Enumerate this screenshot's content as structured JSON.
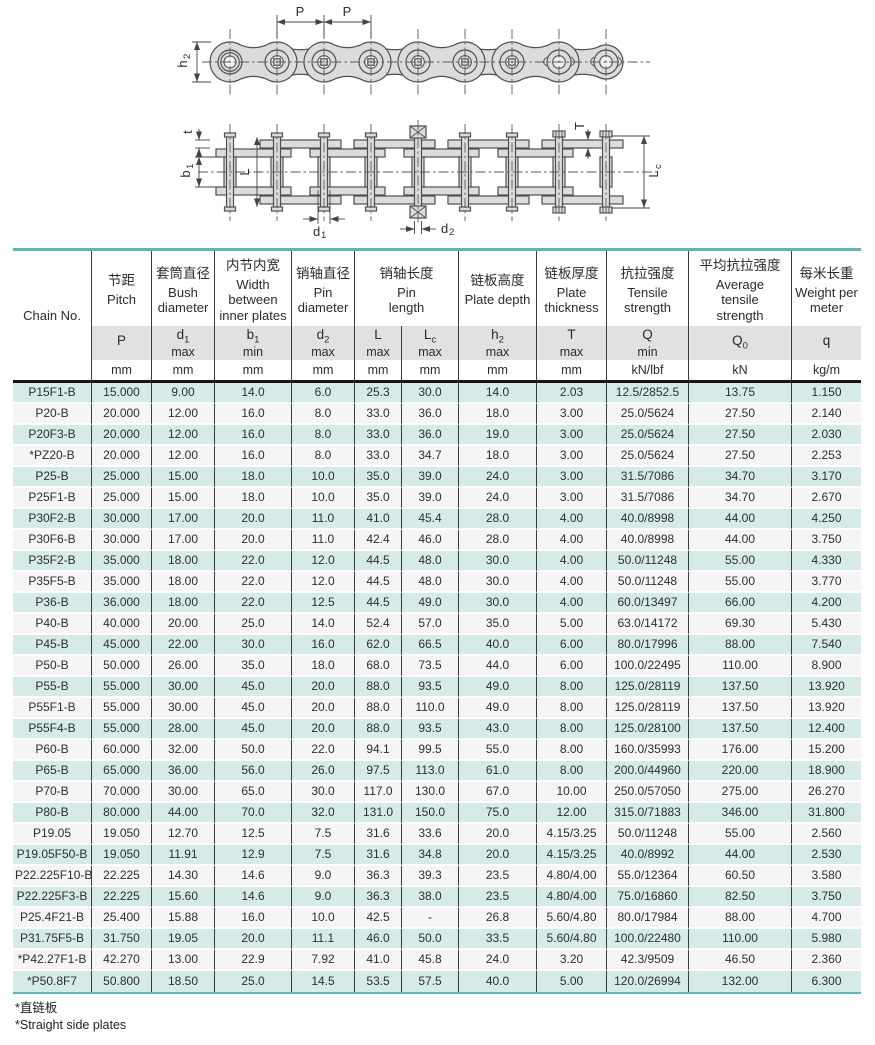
{
  "colors": {
    "accent": "#5fb7b1",
    "row_teal": "#d6ebe7",
    "row_light": "#f5f5f5",
    "band_gray": "#e1e1e1"
  },
  "diagram": {
    "pitch": "P",
    "h2": {
      "base": "h",
      "sub": "2"
    },
    "t": "t",
    "b1": {
      "base": "b",
      "sub": "1"
    },
    "L": "L",
    "d1": {
      "base": "d",
      "sub": "1"
    },
    "d2": {
      "base": "d",
      "sub": "2"
    },
    "T": "T",
    "Lc": {
      "base": "L",
      "sub": "c"
    }
  },
  "table": {
    "chain_no_header": "Chain No.",
    "groups": {
      "pin_length": {
        "cn": "销轴长度",
        "en": "Pin length"
      }
    },
    "columns": [
      {
        "cn": "节距",
        "en": "Pitch",
        "sym": {
          "base": "P",
          "sub": "",
          "qual": ""
        },
        "unit": "mm"
      },
      {
        "cn": "套筒直径",
        "en": "Bush diameter",
        "sym": {
          "base": "d",
          "sub": "1",
          "qual": "max"
        },
        "unit": "mm"
      },
      {
        "cn": "内节内宽",
        "en": "Width between inner plates",
        "sym": {
          "base": "b",
          "sub": "1",
          "qual": "min"
        },
        "unit": "mm"
      },
      {
        "cn": "销轴直径",
        "en": "Pin diameter",
        "sym": {
          "base": "d",
          "sub": "2",
          "qual": "max"
        },
        "unit": "mm"
      },
      {
        "cn": "",
        "en": "",
        "sym": {
          "base": "L",
          "sub": "",
          "qual": "max"
        },
        "unit": "mm"
      },
      {
        "cn": "",
        "en": "",
        "sym": {
          "base": "L",
          "sub": "c",
          "qual": "max"
        },
        "unit": "mm"
      },
      {
        "cn": "链板高度",
        "en": "Plate depth",
        "sym": {
          "base": "h",
          "sub": "2",
          "qual": "max"
        },
        "unit": "mm"
      },
      {
        "cn": "链板厚度",
        "en": "Plate thickness",
        "sym": {
          "base": "T",
          "sub": "",
          "qual": "max"
        },
        "unit": "mm"
      },
      {
        "cn": "抗拉强度",
        "en": "Tensile strength",
        "sym": {
          "base": "Q",
          "sub": "",
          "qual": "min"
        },
        "unit": "kN/lbf"
      },
      {
        "cn": "平均抗拉强度",
        "en": "Average tensile strength",
        "sym": {
          "base": "Q",
          "sub": "0",
          "qual": ""
        },
        "unit": "kN"
      },
      {
        "cn": "每米长重",
        "en": "Weight per meter",
        "sym": {
          "base": "q",
          "sub": "",
          "qual": ""
        },
        "unit": "kg/m"
      }
    ],
    "rows": [
      [
        "P15F1-B",
        "15.000",
        "9.00",
        "14.0",
        "6.0",
        "25.3",
        "30.0",
        "14.0",
        "2.03",
        "12.5/2852.5",
        "13.75",
        "1.150"
      ],
      [
        "P20-B",
        "20.000",
        "12.00",
        "16.0",
        "8.0",
        "33.0",
        "36.0",
        "18.0",
        "3.00",
        "25.0/5624",
        "27.50",
        "2.140"
      ],
      [
        "P20F3-B",
        "20.000",
        "12.00",
        "16.0",
        "8.0",
        "33.0",
        "36.0",
        "19.0",
        "3.00",
        "25.0/5624",
        "27.50",
        "2.030"
      ],
      [
        "*PZ20-B",
        "20.000",
        "12.00",
        "16.0",
        "8.0",
        "33.0",
        "34.7",
        "18.0",
        "3.00",
        "25.0/5624",
        "27.50",
        "2.253"
      ],
      [
        "P25-B",
        "25.000",
        "15.00",
        "18.0",
        "10.0",
        "35.0",
        "39.0",
        "24.0",
        "3.00",
        "31.5/7086",
        "34.70",
        "3.170"
      ],
      [
        "P25F1-B",
        "25.000",
        "15.00",
        "18.0",
        "10.0",
        "35.0",
        "39.0",
        "24.0",
        "3.00",
        "31.5/7086",
        "34.70",
        "2.670"
      ],
      [
        "P30F2-B",
        "30.000",
        "17.00",
        "20.0",
        "11.0",
        "41.0",
        "45.4",
        "28.0",
        "4.00",
        "40.0/8998",
        "44.00",
        "4.250"
      ],
      [
        "P30F6-B",
        "30.000",
        "17.00",
        "20.0",
        "11.0",
        "42.4",
        "46.0",
        "28.0",
        "4.00",
        "40.0/8998",
        "44.00",
        "3.750"
      ],
      [
        "P35F2-B",
        "35.000",
        "18.00",
        "22.0",
        "12.0",
        "44.5",
        "48.0",
        "30.0",
        "4.00",
        "50.0/11248",
        "55.00",
        "4.330"
      ],
      [
        "P35F5-B",
        "35.000",
        "18.00",
        "22.0",
        "12.0",
        "44.5",
        "48.0",
        "30.0",
        "4.00",
        "50.0/11248",
        "55.00",
        "3.770"
      ],
      [
        "P36-B",
        "36.000",
        "18.00",
        "22.0",
        "12.5",
        "44.5",
        "49.0",
        "30.0",
        "4.00",
        "60.0/13497",
        "66.00",
        "4.200"
      ],
      [
        "P40-B",
        "40.000",
        "20.00",
        "25.0",
        "14.0",
        "52.4",
        "57.0",
        "35.0",
        "5.00",
        "63.0/14172",
        "69.30",
        "5.430"
      ],
      [
        "P45-B",
        "45.000",
        "22.00",
        "30.0",
        "16.0",
        "62.0",
        "66.5",
        "40.0",
        "6.00",
        "80.0/17996",
        "88.00",
        "7.540"
      ],
      [
        "P50-B",
        "50.000",
        "26.00",
        "35.0",
        "18.0",
        "68.0",
        "73.5",
        "44.0",
        "6.00",
        "100.0/22495",
        "110.00",
        "8.900"
      ],
      [
        "P55-B",
        "55.000",
        "30.00",
        "45.0",
        "20.0",
        "88.0",
        "93.5",
        "49.0",
        "8.00",
        "125.0/28119",
        "137.50",
        "13.920"
      ],
      [
        "P55F1-B",
        "55.000",
        "30.00",
        "45.0",
        "20.0",
        "88.0",
        "110.0",
        "49.0",
        "8.00",
        "125.0/28119",
        "137.50",
        "13.920"
      ],
      [
        "P55F4-B",
        "55.000",
        "28.00",
        "45.0",
        "20.0",
        "88.0",
        "93.5",
        "43.0",
        "8.00",
        "125.0/28100",
        "137.50",
        "12.400"
      ],
      [
        "P60-B",
        "60.000",
        "32.00",
        "50.0",
        "22.0",
        "94.1",
        "99.5",
        "55.0",
        "8.00",
        "160.0/35993",
        "176.00",
        "15.200"
      ],
      [
        "P65-B",
        "65.000",
        "36.00",
        "56.0",
        "26.0",
        "97.5",
        "113.0",
        "61.0",
        "8.00",
        "200.0/44960",
        "220.00",
        "18.900"
      ],
      [
        "P70-B",
        "70.000",
        "30.00",
        "65.0",
        "30.0",
        "117.0",
        "130.0",
        "67.0",
        "10.00",
        "250.0/57050",
        "275.00",
        "26.270"
      ],
      [
        "P80-B",
        "80.000",
        "44.00",
        "70.0",
        "32.0",
        "131.0",
        "150.0",
        "75.0",
        "12.00",
        "315.0/71883",
        "346.00",
        "31.800"
      ],
      [
        "P19.05",
        "19.050",
        "12.70",
        "12.5",
        "7.5",
        "31.6",
        "33.6",
        "20.0",
        "4.15/3.25",
        "50.0/11248",
        "55.00",
        "2.560"
      ],
      [
        "P19.05F50-B",
        "19.050",
        "11.91",
        "12.9",
        "7.5",
        "31.6",
        "34.8",
        "20.0",
        "4.15/3.25",
        "40.0/8992",
        "44.00",
        "2.530"
      ],
      [
        "P22.225F10-B",
        "22.225",
        "14.30",
        "14.6",
        "9.0",
        "36.3",
        "39.3",
        "23.5",
        "4.80/4.00",
        "55.0/12364",
        "60.50",
        "3.580"
      ],
      [
        "P22.225F3-B",
        "22.225",
        "15.60",
        "14.6",
        "9.0",
        "36.3",
        "38.0",
        "23.5",
        "4.80/4.00",
        "75.0/16860",
        "82.50",
        "3.750"
      ],
      [
        "P25.4F21-B",
        "25.400",
        "15.88",
        "16.0",
        "10.0",
        "42.5",
        "-",
        "26.8",
        "5.60/4.80",
        "80.0/17984",
        "88.00",
        "4.700"
      ],
      [
        "P31.75F5-B",
        "31.750",
        "19.05",
        "20.0",
        "11.1",
        "46.0",
        "50.0",
        "33.5",
        "5.60/4.80",
        "100.0/22480",
        "110.00",
        "5.980"
      ],
      [
        "*P42.27F1-B",
        "42.270",
        "13.00",
        "22.9",
        "7.92",
        "41.0",
        "45.8",
        "24.0",
        "3.20",
        "42.3/9509",
        "46.50",
        "2.360"
      ],
      [
        "*P50.8F7",
        "50.800",
        "18.50",
        "25.0",
        "14.5",
        "53.5",
        "57.5",
        "40.0",
        "5.00",
        "120.0/26994",
        "132.00",
        "6.300"
      ]
    ]
  },
  "footnotes": [
    "*直链板",
    "*Straight side plates"
  ]
}
